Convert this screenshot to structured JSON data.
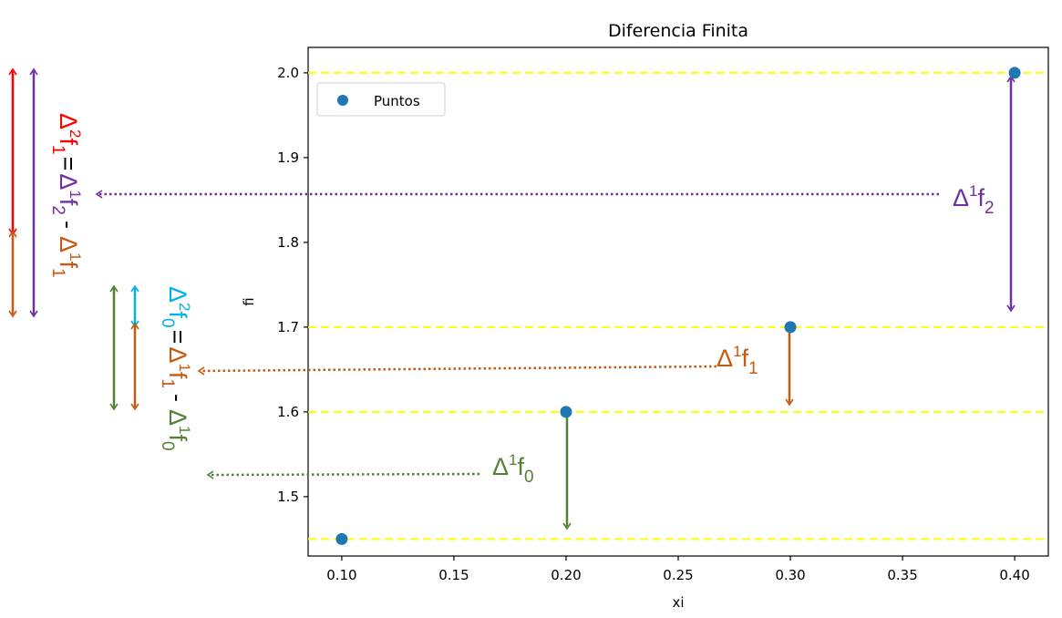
{
  "chart_data": {
    "type": "scatter",
    "title": "Diferencia Finita",
    "xlabel": "xi",
    "ylabel": "fi",
    "x": [
      0.1,
      0.2,
      0.3,
      0.4
    ],
    "series": [
      {
        "name": "Puntos",
        "values": [
          1.45,
          1.6,
          1.7,
          2.0
        ],
        "color": "#1f77b4"
      }
    ],
    "xlim": [
      0.085,
      0.415
    ],
    "ylim": [
      1.43,
      2.03
    ],
    "xticks": [
      "0.10",
      "0.15",
      "0.20",
      "0.25",
      "0.30",
      "0.35",
      "0.40"
    ],
    "yticks": [
      "1.5",
      "1.6",
      "1.7",
      "1.8",
      "1.9",
      "2.0"
    ],
    "hlines": {
      "values": [
        1.45,
        1.6,
        1.7,
        2.0
      ],
      "style": "dashed",
      "color": "#ffff00"
    },
    "grid": false,
    "legend": {
      "position": "upper left",
      "entries": [
        "Puntos"
      ]
    },
    "annotations": [
      {
        "id": "d1f0",
        "text": "Δ¹f₀",
        "base": "Δ",
        "sup": "1",
        "var": "f",
        "sub": "0",
        "color": "#548235",
        "from": 1.45,
        "to": 1.6,
        "x": 0.2
      },
      {
        "id": "d1f1",
        "text": "Δ¹f₁",
        "base": "Δ",
        "sup": "1",
        "var": "f",
        "sub": "1",
        "color": "#c55a11",
        "from": 1.6,
        "to": 1.7,
        "x": 0.3
      },
      {
        "id": "d1f2",
        "text": "Δ¹f₂",
        "base": "Δ",
        "sup": "1",
        "var": "f",
        "sub": "2",
        "color": "#7030a0",
        "from": 1.7,
        "to": 2.0,
        "x": 0.4
      }
    ],
    "equations": [
      {
        "id": "d2f1",
        "lhs": {
          "sup": "2",
          "sub": "1",
          "color": "#ff0000"
        },
        "eq": "=",
        "t1": {
          "sup": "1",
          "sub": "2",
          "color": "#7030a0"
        },
        "minus": "-",
        "t2": {
          "sup": "1",
          "sub": "1",
          "color": "#c55a11"
        }
      },
      {
        "id": "d2f0",
        "lhs": {
          "sup": "2",
          "sub": "0",
          "color": "#00b0f0"
        },
        "eq": "=",
        "t1": {
          "sup": "1",
          "sub": "1",
          "color": "#c55a11"
        },
        "minus": "-",
        "t2": {
          "sup": "1",
          "sub": "0",
          "color": "#548235"
        }
      }
    ]
  },
  "colors": {
    "point": "#1f77b4",
    "hline": "#ffff00",
    "axis": "#000000",
    "red": "#ff0000",
    "purple": "#7030a0",
    "orange": "#c55a11",
    "green": "#548235",
    "cyan": "#00b0f0"
  },
  "text": {
    "delta": "Δ",
    "f": "f",
    "eq": "=",
    "minus": "-"
  }
}
